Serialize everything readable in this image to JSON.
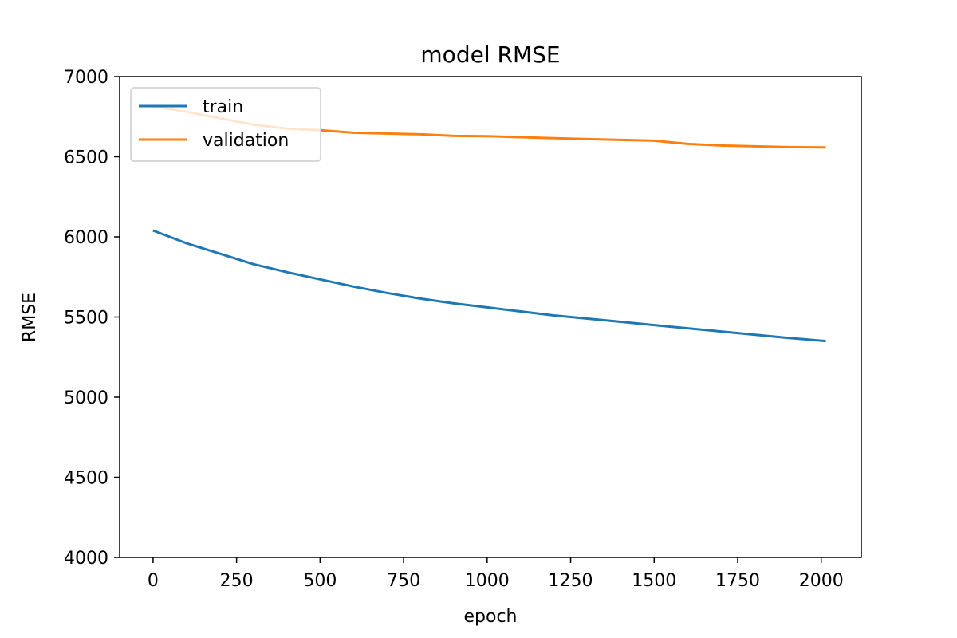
{
  "chart_data": {
    "type": "line",
    "title": "model RMSE",
    "xlabel": "epoch",
    "ylabel": "RMSE",
    "xlim": [
      -100,
      2120
    ],
    "ylim": [
      4000,
      7000
    ],
    "x_ticks": [
      0,
      250,
      500,
      750,
      1000,
      1250,
      1500,
      1750,
      2000
    ],
    "y_ticks": [
      4000,
      4500,
      5000,
      5500,
      6000,
      6500,
      7000
    ],
    "grid": false,
    "legend_position": "upper left",
    "series": [
      {
        "name": "train",
        "color": "#1f77b4",
        "x": [
          0,
          100,
          200,
          300,
          400,
          500,
          600,
          700,
          800,
          900,
          1000,
          1100,
          1200,
          1300,
          1400,
          1500,
          1600,
          1700,
          1800,
          1900,
          2014
        ],
        "y": [
          6040,
          5960,
          5895,
          5830,
          5780,
          5735,
          5690,
          5650,
          5615,
          5585,
          5560,
          5535,
          5510,
          5490,
          5470,
          5450,
          5430,
          5410,
          5390,
          5370,
          5350
        ]
      },
      {
        "name": "validation",
        "color": "#ff7f0e",
        "x": [
          0,
          100,
          200,
          300,
          400,
          500,
          600,
          700,
          800,
          900,
          1000,
          1100,
          1200,
          1300,
          1400,
          1500,
          1600,
          1700,
          1800,
          1900,
          2014
        ],
        "y": [
          6815,
          6780,
          6740,
          6700,
          6675,
          6665,
          6650,
          6645,
          6640,
          6630,
          6628,
          6622,
          6616,
          6610,
          6605,
          6600,
          6580,
          6570,
          6565,
          6560,
          6558
        ]
      }
    ]
  }
}
